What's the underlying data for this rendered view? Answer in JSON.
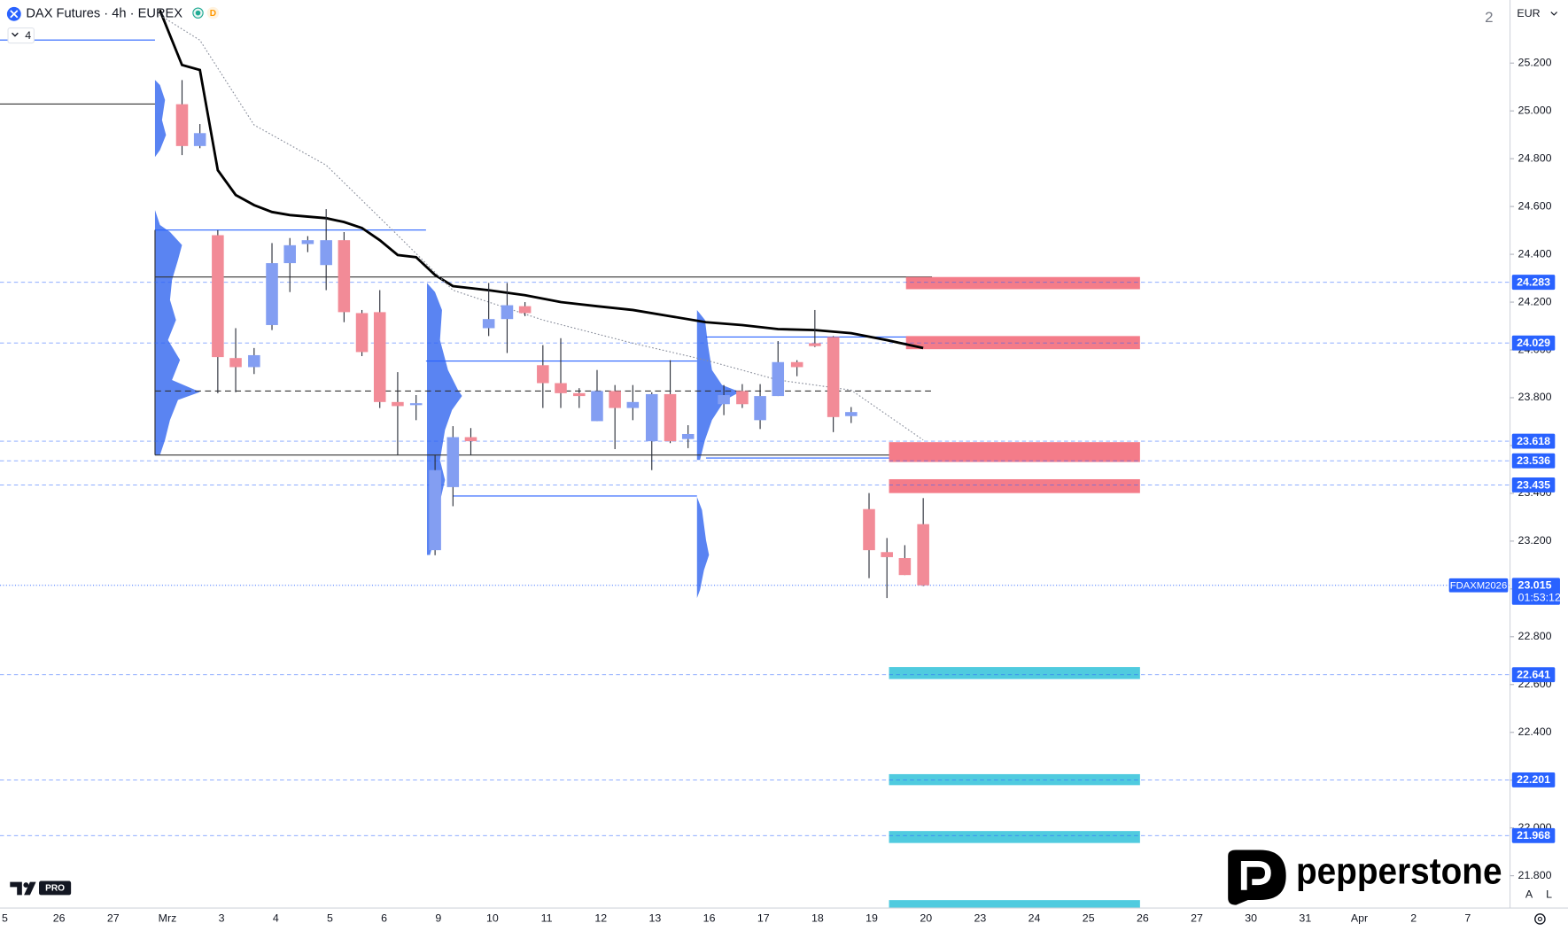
{
  "chart_data": {
    "type": "candlestick",
    "title": "DAX Futures · 4h · EUREX",
    "badge": "D",
    "pane_number": "2",
    "currency": "EUR",
    "indicator_count": "4",
    "tv_badge": "PRO",
    "brand": "pepperstone",
    "scale_buttons": [
      "A",
      "L"
    ],
    "categories": [
      "5",
      "26",
      "27",
      "Mrz",
      "3",
      "4",
      "5",
      "6",
      "9",
      "10",
      "11",
      "12",
      "13",
      "16",
      "17",
      "18",
      "19",
      "20",
      "23",
      "24",
      "25",
      "26",
      "27",
      "30",
      "31",
      "Apr",
      "2",
      "7"
    ],
    "xlim": [
      -0.09,
      27.78
    ],
    "ylim": [
      21665,
      25464
    ],
    "yticks": [
      {
        "value": 21800,
        "label": "21.800"
      },
      {
        "value": 22000,
        "label": "22.000"
      },
      {
        "value": 22200,
        "label": "22.200"
      },
      {
        "value": 22400,
        "label": "22.400"
      },
      {
        "value": 22600,
        "label": "22.600"
      },
      {
        "value": 22800,
        "label": "22.800"
      },
      {
        "value": 23000,
        "label": "23.000"
      },
      {
        "value": 23200,
        "label": "23.200"
      },
      {
        "value": 23400,
        "label": "23.400"
      },
      {
        "value": 23600,
        "label": "23.600"
      },
      {
        "value": 23800,
        "label": "23.800"
      },
      {
        "value": 24000,
        "label": "24.000"
      },
      {
        "value": 24200,
        "label": "24.200"
      },
      {
        "value": 24400,
        "label": "24.400"
      },
      {
        "value": 24600,
        "label": "24.600"
      },
      {
        "value": 24800,
        "label": "24.800"
      },
      {
        "value": 25000,
        "label": "25.000"
      },
      {
        "value": 25200,
        "label": "25.200"
      }
    ],
    "grid": false,
    "up_color": "#839ef2",
    "down_color": "#f28b97",
    "wick_color": "#2a2e39",
    "candles": {
      "x": [
        3.27,
        3.6,
        3.93,
        4.26,
        4.6,
        4.93,
        5.26,
        5.59,
        5.93,
        6.26,
        6.59,
        6.92,
        7.25,
        7.59,
        7.94,
        8.27,
        8.6,
        8.93,
        9.27,
        9.6,
        9.93,
        10.26,
        10.6,
        10.93,
        11.26,
        11.59,
        11.94,
        12.28,
        12.61,
        13.27,
        13.61,
        13.94,
        14.27,
        14.62,
        14.95,
        15.29,
        15.62,
        15.95,
        16.28,
        16.61,
        16.95
      ],
      "open": [
        25028,
        24853,
        24480,
        23966,
        23928,
        24104,
        24363,
        24443,
        24355,
        24459,
        24154,
        24158,
        23782,
        23769,
        23162,
        23426,
        23635,
        24091,
        24129,
        24183,
        23936,
        23861,
        23819,
        23702,
        23828,
        23757,
        23618,
        23815,
        23627,
        23773,
        23828,
        23706,
        23807,
        23949,
        24028,
        24054,
        23723,
        23334,
        23154,
        23129,
        23271
      ],
      "high": [
        25129,
        24945,
        24501,
        24091,
        24008,
        24447,
        24468,
        24476,
        24589,
        24493,
        24167,
        24250,
        23907,
        23811,
        23560,
        23681,
        23673,
        24280,
        24280,
        24200,
        24020,
        24049,
        23840,
        23916,
        23853,
        23853,
        23823,
        23957,
        23685,
        23853,
        23857,
        23857,
        24037,
        23957,
        24167,
        24058,
        23761,
        23401,
        23213,
        23183,
        23380
      ],
      "low": [
        24815,
        24844,
        23819,
        23823,
        23899,
        24083,
        24242,
        24409,
        24250,
        24116,
        23974,
        23757,
        23560,
        23706,
        23141,
        23346,
        23560,
        24058,
        23987,
        24141,
        23757,
        23757,
        23757,
        23702,
        23585,
        23706,
        23497,
        23610,
        23589,
        23727,
        23757,
        23669,
        23807,
        23890,
        24012,
        23656,
        23694,
        23045,
        22962,
        23058,
        23012
      ],
      "close": [
        24853,
        24907,
        23970,
        23928,
        23978,
        24363,
        24438,
        24459,
        24459,
        24158,
        23991,
        23782,
        23765,
        23777,
        23497,
        23635,
        23618,
        24129,
        24187,
        24154,
        23861,
        23819,
        23807,
        23828,
        23757,
        23782,
        23815,
        23618,
        23648,
        23811,
        23773,
        23807,
        23949,
        23928,
        24016,
        23719,
        23740,
        23162,
        23133,
        23058,
        23015
      ]
    },
    "lines": [
      {
        "color": "#000000",
        "width": 2.5,
        "x": [
          2.86,
          3.27,
          3.6,
          3.93,
          4.26,
          4.6,
          4.93,
          5.26,
          5.93,
          6.26,
          6.59,
          6.92,
          7.25,
          7.59,
          7.94,
          8.27,
          8.93,
          9.6,
          10.26,
          10.93,
          11.59,
          12.28,
          12.94,
          13.61,
          14.27,
          14.95,
          15.62,
          16.28,
          16.95
        ],
        "values": [
          25422,
          25192,
          25171,
          24752,
          24648,
          24606,
          24577,
          24564,
          24551,
          24535,
          24510,
          24459,
          24397,
          24388,
          24313,
          24267,
          24250,
          24229,
          24200,
          24183,
          24167,
          24141,
          24116,
          24104,
          24087,
          24083,
          24070,
          24041,
          24008
        ]
      },
      {
        "color": "#8a8f9c",
        "width": 1,
        "x": [
          2.86,
          3.6,
          4.6,
          5.93,
          7.25,
          8.27,
          9.93,
          11.59,
          12.94,
          14.27,
          15.62,
          16.95
        ],
        "values": [
          25401,
          25296,
          24941,
          24773,
          24480,
          24250,
          24125,
          24028,
          23957,
          23874,
          23832,
          23623
        ]
      }
    ],
    "zones": [
      {
        "low": 24254,
        "high": 24305,
        "color": "#f47c89"
      },
      {
        "low": 24003,
        "high": 24058,
        "color": "#f47c89"
      },
      {
        "low": 23531,
        "high": 23614,
        "color": "#f47c89"
      },
      {
        "low": 23401,
        "high": 23459,
        "color": "#f47c89"
      },
      {
        "low": 22623,
        "high": 22673,
        "color": "#50cbdf"
      },
      {
        "low": 22179,
        "high": 22225,
        "color": "#50cbdf"
      },
      {
        "low": 21937,
        "high": 21987,
        "color": "#50cbdf"
      },
      {
        "low": 21665,
        "high": 21698,
        "color": "#50cbdf"
      }
    ],
    "levels": [
      {
        "value": 24283,
        "label": "24.283"
      },
      {
        "value": 24029,
        "label": "24.029"
      },
      {
        "value": 23618,
        "label": "23.618"
      },
      {
        "value": 23536,
        "label": "23.536"
      },
      {
        "value": 23435,
        "label": "23.435"
      },
      {
        "value": 22641,
        "label": "22.641"
      },
      {
        "value": 22201,
        "label": "22.201"
      },
      {
        "value": 21968,
        "label": "21.968"
      }
    ],
    "level_color": "#2962ff",
    "last_price": {
      "value": 23015,
      "label": "23.015",
      "symbol": "FDAXM2026",
      "countdown": "01:53:12"
    }
  }
}
